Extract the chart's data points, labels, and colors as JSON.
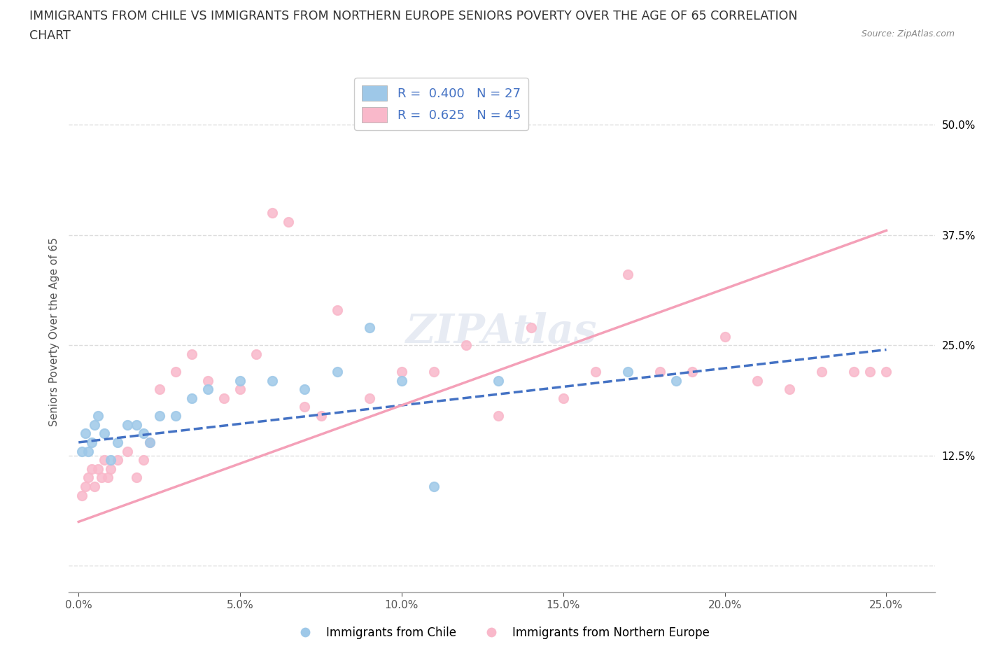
{
  "title_line1": "IMMIGRANTS FROM CHILE VS IMMIGRANTS FROM NORTHERN EUROPE SENIORS POVERTY OVER THE AGE OF 65 CORRELATION",
  "title_line2": "CHART",
  "source_text": "Source: ZipAtlas.com",
  "ylabel": "Seniors Poverty Over the Age of 65",
  "xticklabels": [
    "0.0%",
    "5.0%",
    "10.0%",
    "15.0%",
    "20.0%",
    "25.0%"
  ],
  "xticks": [
    0,
    5,
    10,
    15,
    20,
    25
  ],
  "ytick_vals": [
    0,
    12.5,
    25.0,
    37.5,
    50.0
  ],
  "yticklabels": [
    "",
    "12.5%",
    "25.0%",
    "37.5%",
    "50.0%"
  ],
  "xlim": [
    -0.3,
    26.5
  ],
  "ylim": [
    -3,
    56
  ],
  "watermark": "ZIPAtlas",
  "r_chile": "0.400",
  "n_chile": "27",
  "r_northern": "0.625",
  "n_northern": "45",
  "legend_label_chile": "Immigrants from Chile",
  "legend_label_northern": "Immigrants from Northern Europe",
  "chile_scatter_x": [
    0.1,
    0.2,
    0.3,
    0.4,
    0.5,
    0.6,
    0.8,
    1.0,
    1.2,
    1.5,
    1.8,
    2.0,
    2.2,
    2.5,
    3.0,
    3.5,
    4.0,
    5.0,
    6.0,
    7.0,
    8.0,
    9.0,
    10.0,
    11.0,
    13.0,
    17.0,
    18.5
  ],
  "chile_scatter_y": [
    13,
    15,
    13,
    14,
    16,
    17,
    15,
    12,
    14,
    16,
    16,
    15,
    14,
    17,
    17,
    19,
    20,
    21,
    21,
    20,
    22,
    27,
    21,
    9,
    21,
    22,
    21
  ],
  "northern_scatter_x": [
    0.1,
    0.2,
    0.3,
    0.4,
    0.5,
    0.6,
    0.7,
    0.8,
    0.9,
    1.0,
    1.2,
    1.5,
    1.8,
    2.0,
    2.2,
    2.5,
    3.0,
    3.5,
    4.0,
    4.5,
    5.0,
    5.5,
    6.0,
    6.5,
    7.0,
    7.5,
    8.0,
    9.0,
    10.0,
    11.0,
    12.0,
    13.0,
    14.0,
    15.0,
    16.0,
    17.0,
    18.0,
    19.0,
    20.0,
    21.0,
    22.0,
    23.0,
    24.0,
    24.5,
    25.0
  ],
  "northern_scatter_y": [
    8,
    9,
    10,
    11,
    9,
    11,
    10,
    12,
    10,
    11,
    12,
    13,
    10,
    12,
    14,
    20,
    22,
    24,
    21,
    19,
    20,
    24,
    40,
    39,
    18,
    17,
    29,
    19,
    22,
    22,
    25,
    17,
    27,
    19,
    22,
    33,
    22,
    22,
    26,
    21,
    20,
    22,
    22,
    22,
    22
  ],
  "chile_line_x": [
    0,
    25
  ],
  "chile_line_y": [
    14.0,
    24.5
  ],
  "northern_line_x": [
    0,
    25
  ],
  "northern_line_y": [
    5.0,
    38.0
  ],
  "chile_scatter_color": "#9ec8e8",
  "northern_scatter_color": "#f9b8ca",
  "chile_line_color": "#4472c4",
  "northern_line_color": "#f4a0b8",
  "background_color": "#ffffff",
  "grid_color": "#dddddd",
  "title_fontsize": 12.5,
  "axis_label_fontsize": 11,
  "tick_fontsize": 11,
  "legend_r_color": "#4472c4",
  "tick_color_right": "#4472c4"
}
